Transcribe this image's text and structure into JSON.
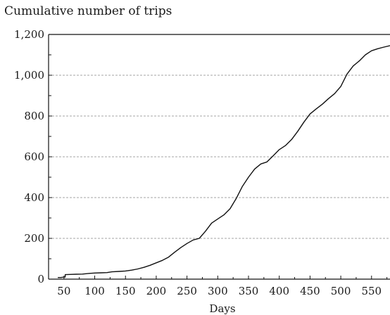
{
  "chart_data": {
    "type": "line",
    "title": "Cumulative number of trips",
    "xlabel": "Days",
    "ylabel": "",
    "xlim": [
      25,
      580
    ],
    "ylim": [
      0,
      1200
    ],
    "x_ticks": [
      50,
      100,
      150,
      200,
      250,
      300,
      350,
      400,
      450,
      500,
      550
    ],
    "y_ticks": [
      0,
      200,
      400,
      600,
      800,
      1000,
      1200
    ],
    "y_tick_labels": [
      "0",
      "200",
      "400",
      "600",
      "800",
      "1,000",
      "1,200"
    ],
    "grid": "horizontal dashed",
    "line_color": "#111111",
    "grid_color": "#888888",
    "series": [
      {
        "x": [
          40,
          45,
          50,
          52,
          52,
          60,
          70,
          80,
          90,
          100,
          110,
          120,
          128,
          140,
          150,
          160,
          170,
          180,
          190,
          200,
          210,
          220,
          230,
          240,
          250,
          260,
          270,
          280,
          290,
          300,
          310,
          320,
          330,
          340,
          350,
          360,
          370,
          380,
          390,
          400,
          410,
          420,
          430,
          440,
          450,
          460,
          470,
          480,
          490,
          500,
          510,
          520,
          530,
          540,
          550,
          560,
          570,
          580
        ],
        "y": [
          8,
          8,
          10,
          10,
          22,
          23,
          24,
          25,
          28,
          30,
          31,
          32,
          36,
          38,
          40,
          44,
          50,
          58,
          68,
          80,
          92,
          108,
          132,
          155,
          175,
          192,
          200,
          235,
          275,
          295,
          315,
          345,
          395,
          455,
          500,
          540,
          565,
          575,
          605,
          635,
          655,
          685,
          725,
          770,
          810,
          835,
          858,
          885,
          910,
          945,
          1005,
          1045,
          1070,
          1100,
          1120,
          1130,
          1138,
          1145
        ]
      }
    ]
  }
}
